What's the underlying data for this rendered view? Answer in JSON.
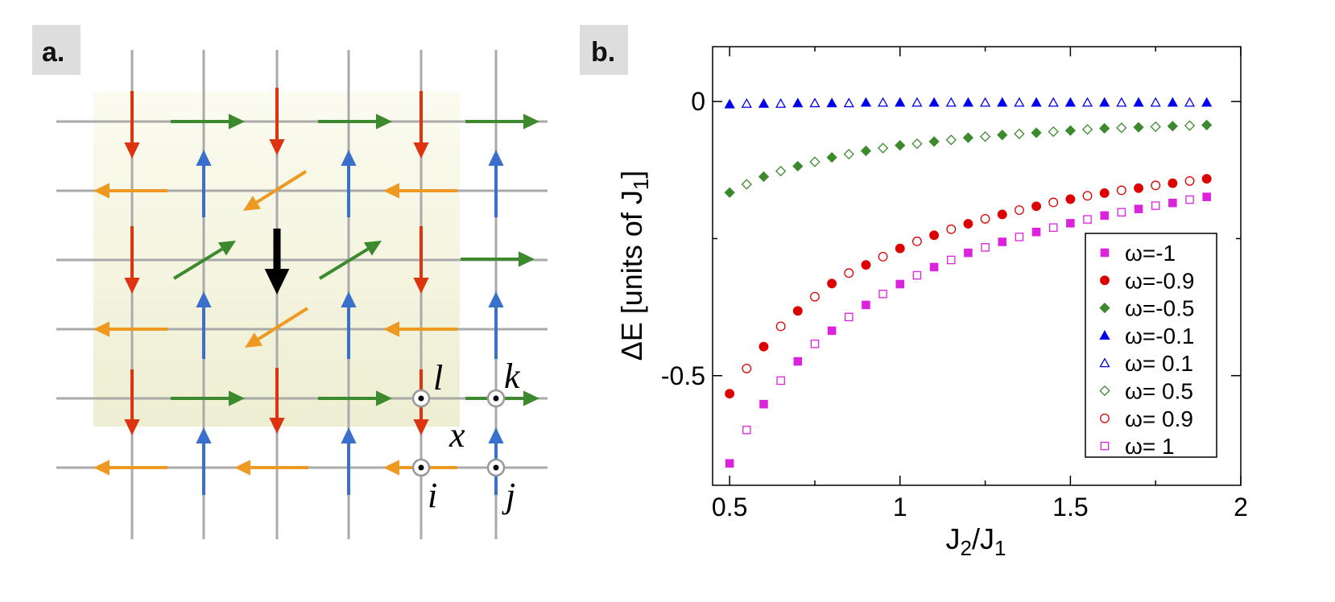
{
  "panel_a": {
    "label": "a.",
    "site_labels": {
      "i": "i",
      "j": "j",
      "k": "k",
      "l": "l",
      "x": "x"
    },
    "colors": {
      "red": "#dd3311",
      "blue": "#3a6fcc",
      "green": "#3d8a2e",
      "orange": "#ee9922",
      "black": "#000000",
      "grid": "#aaaaaa",
      "shade": "#f3f3dc"
    }
  },
  "panel_b": {
    "label": "b."
  },
  "chart_data": {
    "type": "scatter",
    "title": "",
    "xlabel": "J2/J1",
    "ylabel": "ΔE [units of J1]",
    "xlim": [
      0.45,
      2.0
    ],
    "ylim": [
      -0.7,
      0.1
    ],
    "xticks": [
      0.5,
      1,
      1.5,
      2
    ],
    "xtick_labels": [
      "0.5",
      "1",
      "1.5",
      "2"
    ],
    "yticks": [
      0,
      -0.5
    ],
    "ytick_labels": [
      "0",
      "-0.5"
    ],
    "grid": false,
    "legend_position": "lower-right",
    "series": [
      {
        "name": "ω=-1",
        "color": "#dd22dd",
        "marker": "square",
        "filled": true,
        "x": [
          0.5,
          0.6,
          0.7,
          0.8,
          0.9,
          1.0,
          1.1,
          1.2,
          1.3,
          1.4,
          1.5,
          1.6,
          1.7,
          1.8,
          1.9
        ],
        "y": [
          -0.66,
          -0.552,
          -0.474,
          -0.418,
          -0.371,
          -0.333,
          -0.302,
          -0.276,
          -0.256,
          -0.238,
          -0.222,
          -0.208,
          -0.196,
          -0.185,
          -0.174
        ]
      },
      {
        "name": "ω=-0.9",
        "color": "#dd0000",
        "marker": "circle",
        "filled": true,
        "x": [
          0.5,
          0.6,
          0.7,
          0.8,
          0.9,
          1.0,
          1.1,
          1.2,
          1.3,
          1.4,
          1.5,
          1.6,
          1.7,
          1.8,
          1.9
        ],
        "y": [
          -0.533,
          -0.447,
          -0.382,
          -0.332,
          -0.298,
          -0.268,
          -0.244,
          -0.223,
          -0.206,
          -0.191,
          -0.178,
          -0.167,
          -0.158,
          -0.149,
          -0.141
        ]
      },
      {
        "name": "ω=-0.5",
        "color": "#3d8a2e",
        "marker": "diamond",
        "filled": true,
        "x": [
          0.5,
          0.6,
          0.7,
          0.8,
          0.9,
          1.0,
          1.1,
          1.2,
          1.3,
          1.4,
          1.5,
          1.6,
          1.7,
          1.8,
          1.9
        ],
        "y": [
          -0.166,
          -0.137,
          -0.118,
          -0.102,
          -0.09,
          -0.08,
          -0.073,
          -0.066,
          -0.061,
          -0.057,
          -0.053,
          -0.049,
          -0.047,
          -0.045,
          -0.043
        ]
      },
      {
        "name": "ω=-0.1",
        "color": "#0000ee",
        "marker": "triangle",
        "filled": true,
        "x": [
          0.5,
          0.6,
          0.7,
          0.8,
          0.9,
          1.0,
          1.1,
          1.2,
          1.3,
          1.4,
          1.5,
          1.6,
          1.7,
          1.8,
          1.9
        ],
        "y": [
          -0.005,
          -0.004,
          -0.003,
          -0.003,
          -0.002,
          -0.002,
          -0.002,
          -0.002,
          -0.002,
          -0.002,
          -0.002,
          -0.002,
          -0.002,
          -0.002,
          -0.002
        ]
      },
      {
        "name": "ω= 0.1",
        "color": "#0000ee",
        "marker": "triangle",
        "filled": false,
        "x": [
          0.55,
          0.65,
          0.75,
          0.85,
          0.95,
          1.05,
          1.15,
          1.25,
          1.35,
          1.45,
          1.55,
          1.65,
          1.75,
          1.85
        ],
        "y": [
          -0.004,
          -0.004,
          -0.003,
          -0.003,
          -0.002,
          -0.002,
          -0.002,
          -0.002,
          -0.002,
          -0.002,
          -0.002,
          -0.002,
          -0.002,
          -0.002
        ]
      },
      {
        "name": "ω= 0.5",
        "color": "#3d8a2e",
        "marker": "diamond",
        "filled": false,
        "x": [
          0.55,
          0.65,
          0.75,
          0.85,
          0.95,
          1.05,
          1.15,
          1.25,
          1.35,
          1.45,
          1.55,
          1.65,
          1.75,
          1.85
        ],
        "y": [
          -0.151,
          -0.127,
          -0.11,
          -0.096,
          -0.085,
          -0.077,
          -0.07,
          -0.064,
          -0.059,
          -0.055,
          -0.051,
          -0.048,
          -0.046,
          -0.044
        ]
      },
      {
        "name": "ω= 0.9",
        "color": "#dd0000",
        "marker": "circle",
        "filled": false,
        "x": [
          0.55,
          0.65,
          0.75,
          0.85,
          0.95,
          1.05,
          1.15,
          1.25,
          1.35,
          1.45,
          1.55,
          1.65,
          1.75,
          1.85
        ],
        "y": [
          -0.487,
          -0.41,
          -0.356,
          -0.313,
          -0.283,
          -0.255,
          -0.233,
          -0.214,
          -0.198,
          -0.184,
          -0.172,
          -0.162,
          -0.153,
          -0.145
        ]
      },
      {
        "name": "ω= 1",
        "color": "#dd22dd",
        "marker": "square",
        "filled": false,
        "x": [
          0.55,
          0.65,
          0.75,
          0.85,
          0.95,
          1.05,
          1.15,
          1.25,
          1.35,
          1.45,
          1.55,
          1.65,
          1.75,
          1.85
        ],
        "y": [
          -0.599,
          -0.509,
          -0.442,
          -0.393,
          -0.351,
          -0.317,
          -0.289,
          -0.266,
          -0.247,
          -0.23,
          -0.215,
          -0.202,
          -0.19,
          -0.179
        ]
      }
    ]
  }
}
